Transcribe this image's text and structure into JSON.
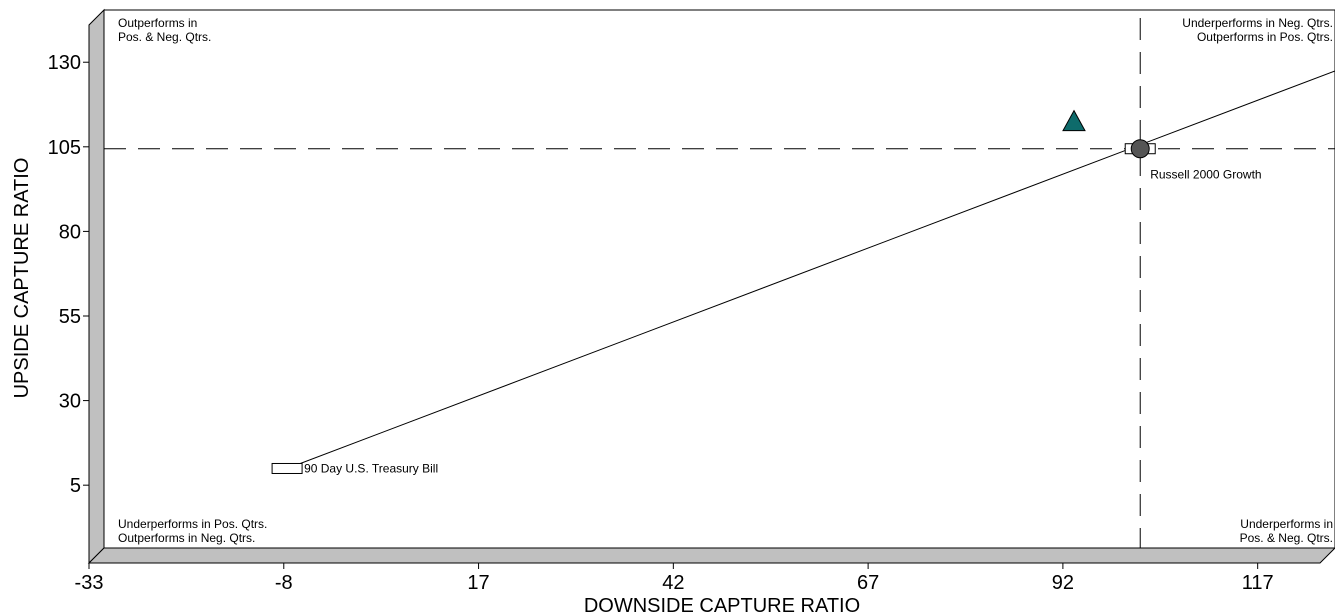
{
  "chart_data": {
    "type": "scatter",
    "title": "",
    "xlabel": "DOWNSIDE CAPTURE RATIO",
    "ylabel": "UPSIDE CAPTURE RATIO",
    "xlim": [
      -33,
      125
    ],
    "ylim": [
      -18,
      141
    ],
    "x_ticks": [
      -33,
      -8,
      17,
      42,
      67,
      92,
      117
    ],
    "y_ticks": [
      5,
      30,
      55,
      80,
      105,
      130
    ],
    "reference_lines": {
      "x": 100,
      "y": 100
    },
    "regression_line": {
      "from": [
        -9.5,
        5.5
      ],
      "to": [
        125,
        123
      ]
    },
    "points": [
      {
        "name": "90 Day U.S. Treasury Bill",
        "shape": "rectangle",
        "x": -9.5,
        "y": 5.5,
        "color": "#ffffff"
      },
      {
        "name": "Russell 2000 Growth",
        "shape": "rectangle",
        "x": 100,
        "y": 100,
        "color": "#ffffff"
      },
      {
        "name": "",
        "shape": "circle",
        "x": 100,
        "y": 100,
        "color": "#555555"
      },
      {
        "name": "",
        "shape": "triangle",
        "x": 91.5,
        "y": 108,
        "color": "#0e6b6b"
      }
    ],
    "quadrant_labels": {
      "top_left": [
        "Outperforms in",
        "Pos. & Neg. Qtrs."
      ],
      "top_right": [
        "Underperforms in Neg. Qtrs.",
        "Outperforms in Pos. Qtrs."
      ],
      "bottom_left": [
        "Underperforms in Pos. Qtrs.",
        "Outperforms in Neg. Qtrs."
      ],
      "bottom_right": [
        "Underperforms in",
        "Pos. & Neg. Qtrs."
      ]
    },
    "grid": false,
    "legend": "none"
  }
}
